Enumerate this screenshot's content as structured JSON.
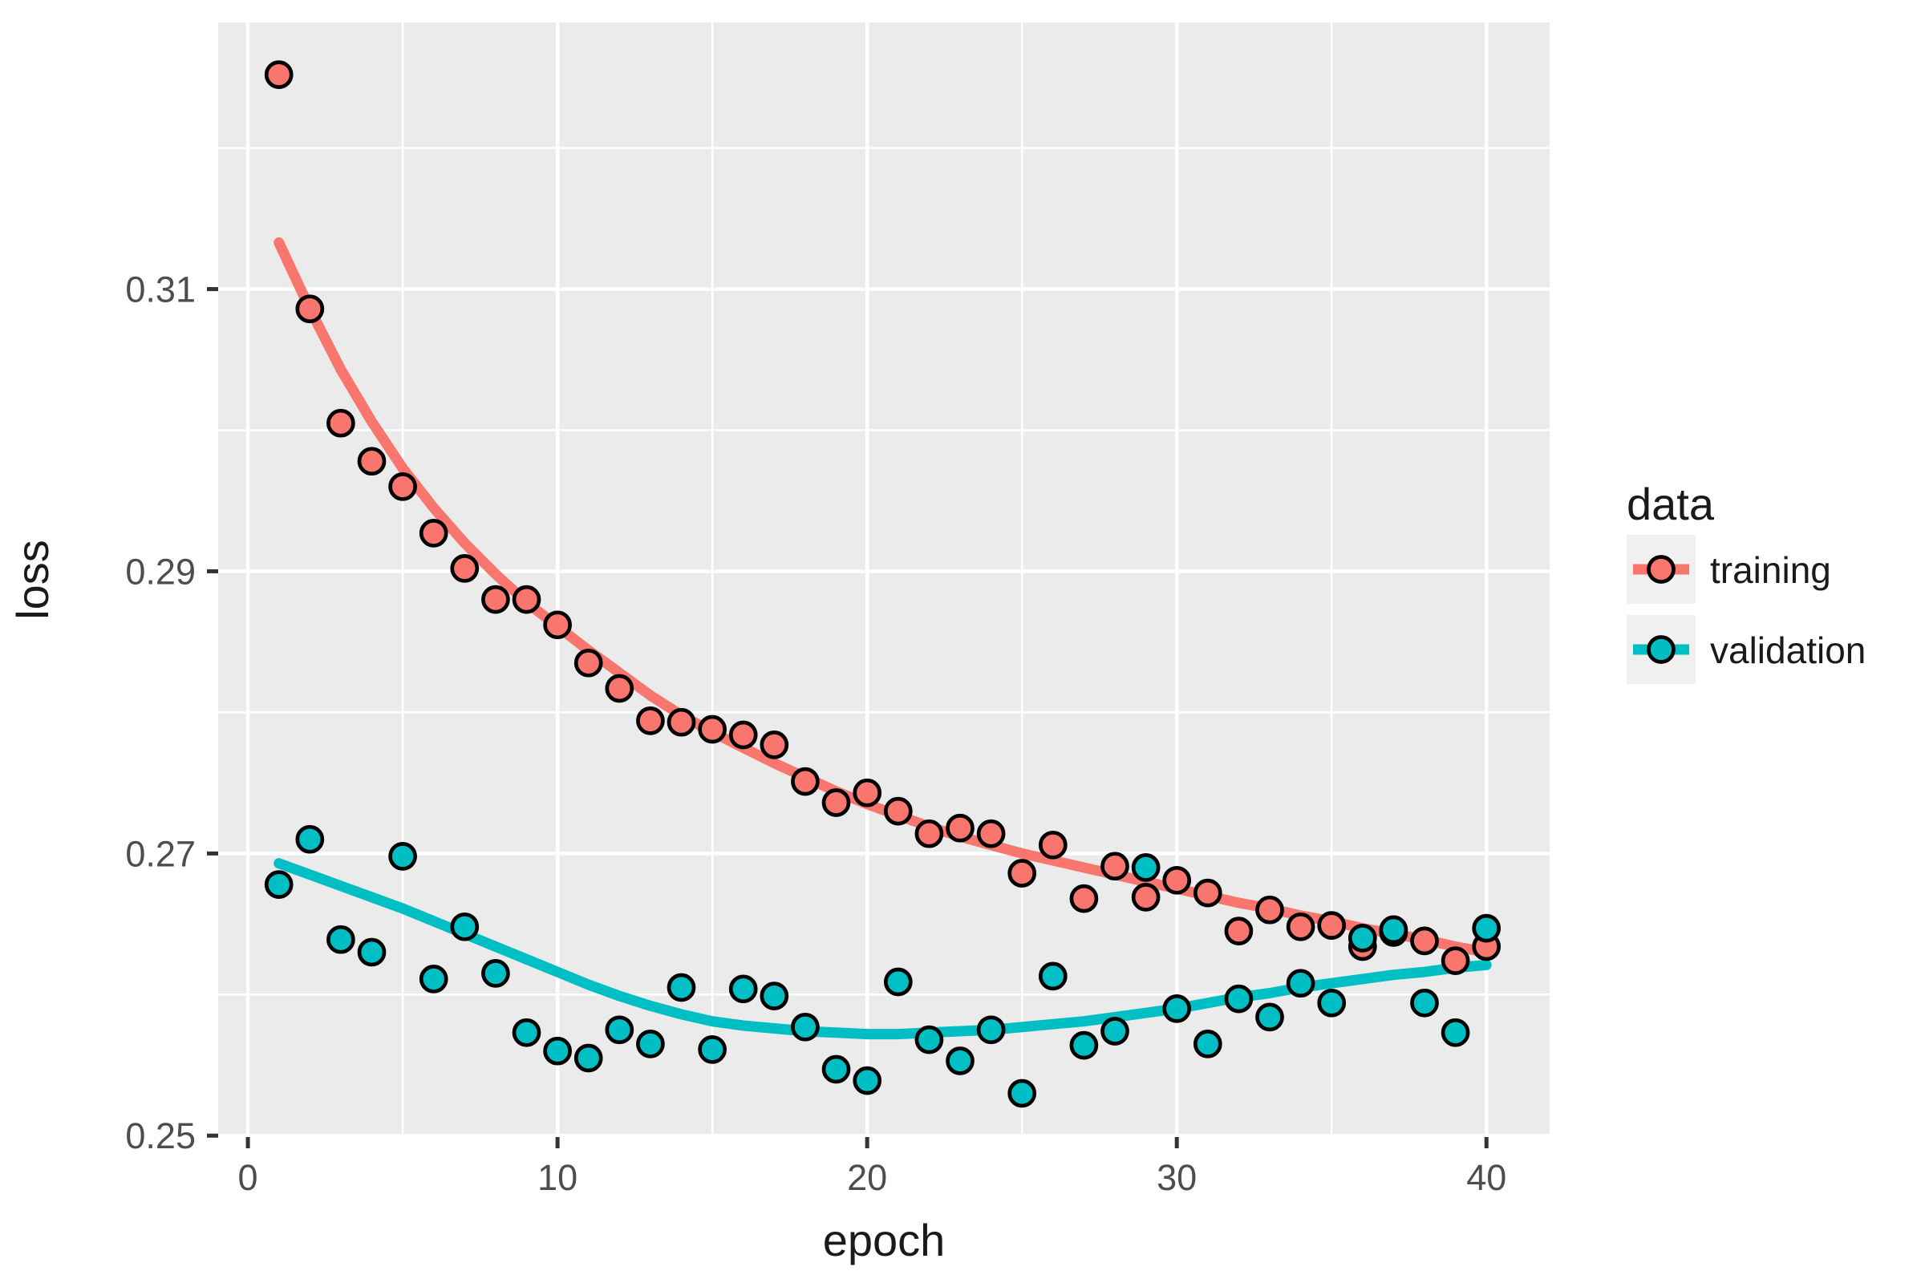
{
  "legend": {
    "title": "data",
    "position": "right"
  },
  "style": {
    "background": "#FFFFFF",
    "panel_bg": "#EBEBEB",
    "grid_color": "#FFFFFF",
    "tick_color": "#333333",
    "tick_label_color": "#4D4D4D",
    "text_color": "#1A1A1A",
    "legend_key_bg": "#F0F0F0",
    "point_stroke": "#000000",
    "training_color": "#F8766D",
    "validation_color": "#00BFC4"
  },
  "chart_data": {
    "type": "scatter",
    "title": "",
    "xlabel": "epoch",
    "ylabel": "loss",
    "xlim": [
      -0.96,
      42.04
    ],
    "ylim": [
      0.2499,
      0.3289
    ],
    "grid": true,
    "legend_position": "right",
    "x_ticks": {
      "values": [
        0,
        10,
        20,
        30,
        40
      ],
      "labels": [
        "0",
        "10",
        "20",
        "30",
        "40"
      ],
      "minor": [
        5,
        15,
        25,
        35
      ]
    },
    "y_ticks": {
      "values": [
        0.25,
        0.27,
        0.29,
        0.31
      ],
      "labels": [
        "0.25",
        "0.27",
        "0.29",
        "0.31"
      ],
      "minor": [
        0.26,
        0.28,
        0.3,
        0.32
      ]
    },
    "x": [
      1,
      2,
      3,
      4,
      5,
      6,
      7,
      8,
      9,
      10,
      11,
      12,
      13,
      14,
      15,
      16,
      17,
      18,
      19,
      20,
      21,
      22,
      23,
      24,
      25,
      26,
      27,
      28,
      29,
      30,
      31,
      32,
      33,
      34,
      35,
      36,
      37,
      38,
      39,
      40
    ],
    "series": [
      {
        "name": "training",
        "color": "#F8766D",
        "values": [
          0.3252,
          0.3086,
          0.3005,
          0.2978,
          0.296,
          0.2927,
          0.2902,
          0.288,
          0.288,
          0.2862,
          0.2835,
          0.2817,
          0.2794,
          0.2793,
          0.2788,
          0.2784,
          0.2777,
          0.2751,
          0.2736,
          0.2743,
          0.273,
          0.2714,
          0.2718,
          0.2714,
          0.2686,
          0.2706,
          0.2668,
          0.2691,
          0.2669,
          0.2681,
          0.2672,
          0.2645,
          0.266,
          0.2648,
          0.2649,
          0.2634,
          0.2644,
          0.2638,
          0.2624,
          0.2634
        ],
        "smooth": [
          0.3133,
          0.3086,
          0.3043,
          0.3006,
          0.2973,
          0.2945,
          0.292,
          0.2898,
          0.2878,
          0.2861,
          0.2844,
          0.2828,
          0.2812,
          0.2798,
          0.2786,
          0.2775,
          0.2764,
          0.2754,
          0.2744,
          0.2735,
          0.2727,
          0.2719,
          0.2712,
          0.2706,
          0.27,
          0.2695,
          0.269,
          0.2685,
          0.268,
          0.2675,
          0.267,
          0.2665,
          0.2661,
          0.2656,
          0.2652,
          0.2647,
          0.2643,
          0.2639,
          0.2634,
          0.263
        ]
      },
      {
        "name": "validation",
        "color": "#00BFC4",
        "values": [
          0.2678,
          0.271,
          0.2639,
          0.263,
          0.2698,
          0.2611,
          0.2648,
          0.2615,
          0.2573,
          0.256,
          0.2555,
          0.2575,
          0.2565,
          0.2605,
          0.2561,
          0.2604,
          0.2599,
          0.2577,
          0.2547,
          0.2539,
          0.2609,
          0.2568,
          0.2553,
          0.2575,
          0.253,
          0.2613,
          0.2564,
          0.2574,
          0.269,
          0.259,
          0.2565,
          0.2597,
          0.2584,
          0.2608,
          0.2594,
          0.264,
          0.2646,
          0.2594,
          0.2573,
          0.2647
        ],
        "smooth": [
          0.2693,
          0.2685,
          0.2677,
          0.2669,
          0.2661,
          0.2652,
          0.2643,
          0.2634,
          0.2625,
          0.2616,
          0.2607,
          0.2599,
          0.2592,
          0.2586,
          0.2581,
          0.2578,
          0.2576,
          0.2574,
          0.2573,
          0.2572,
          0.2572,
          0.2573,
          0.2574,
          0.2575,
          0.2577,
          0.2579,
          0.2581,
          0.2584,
          0.2587,
          0.259,
          0.2594,
          0.2598,
          0.2601,
          0.2605,
          0.2608,
          0.2611,
          0.2614,
          0.2616,
          0.2619,
          0.2621
        ]
      }
    ]
  }
}
